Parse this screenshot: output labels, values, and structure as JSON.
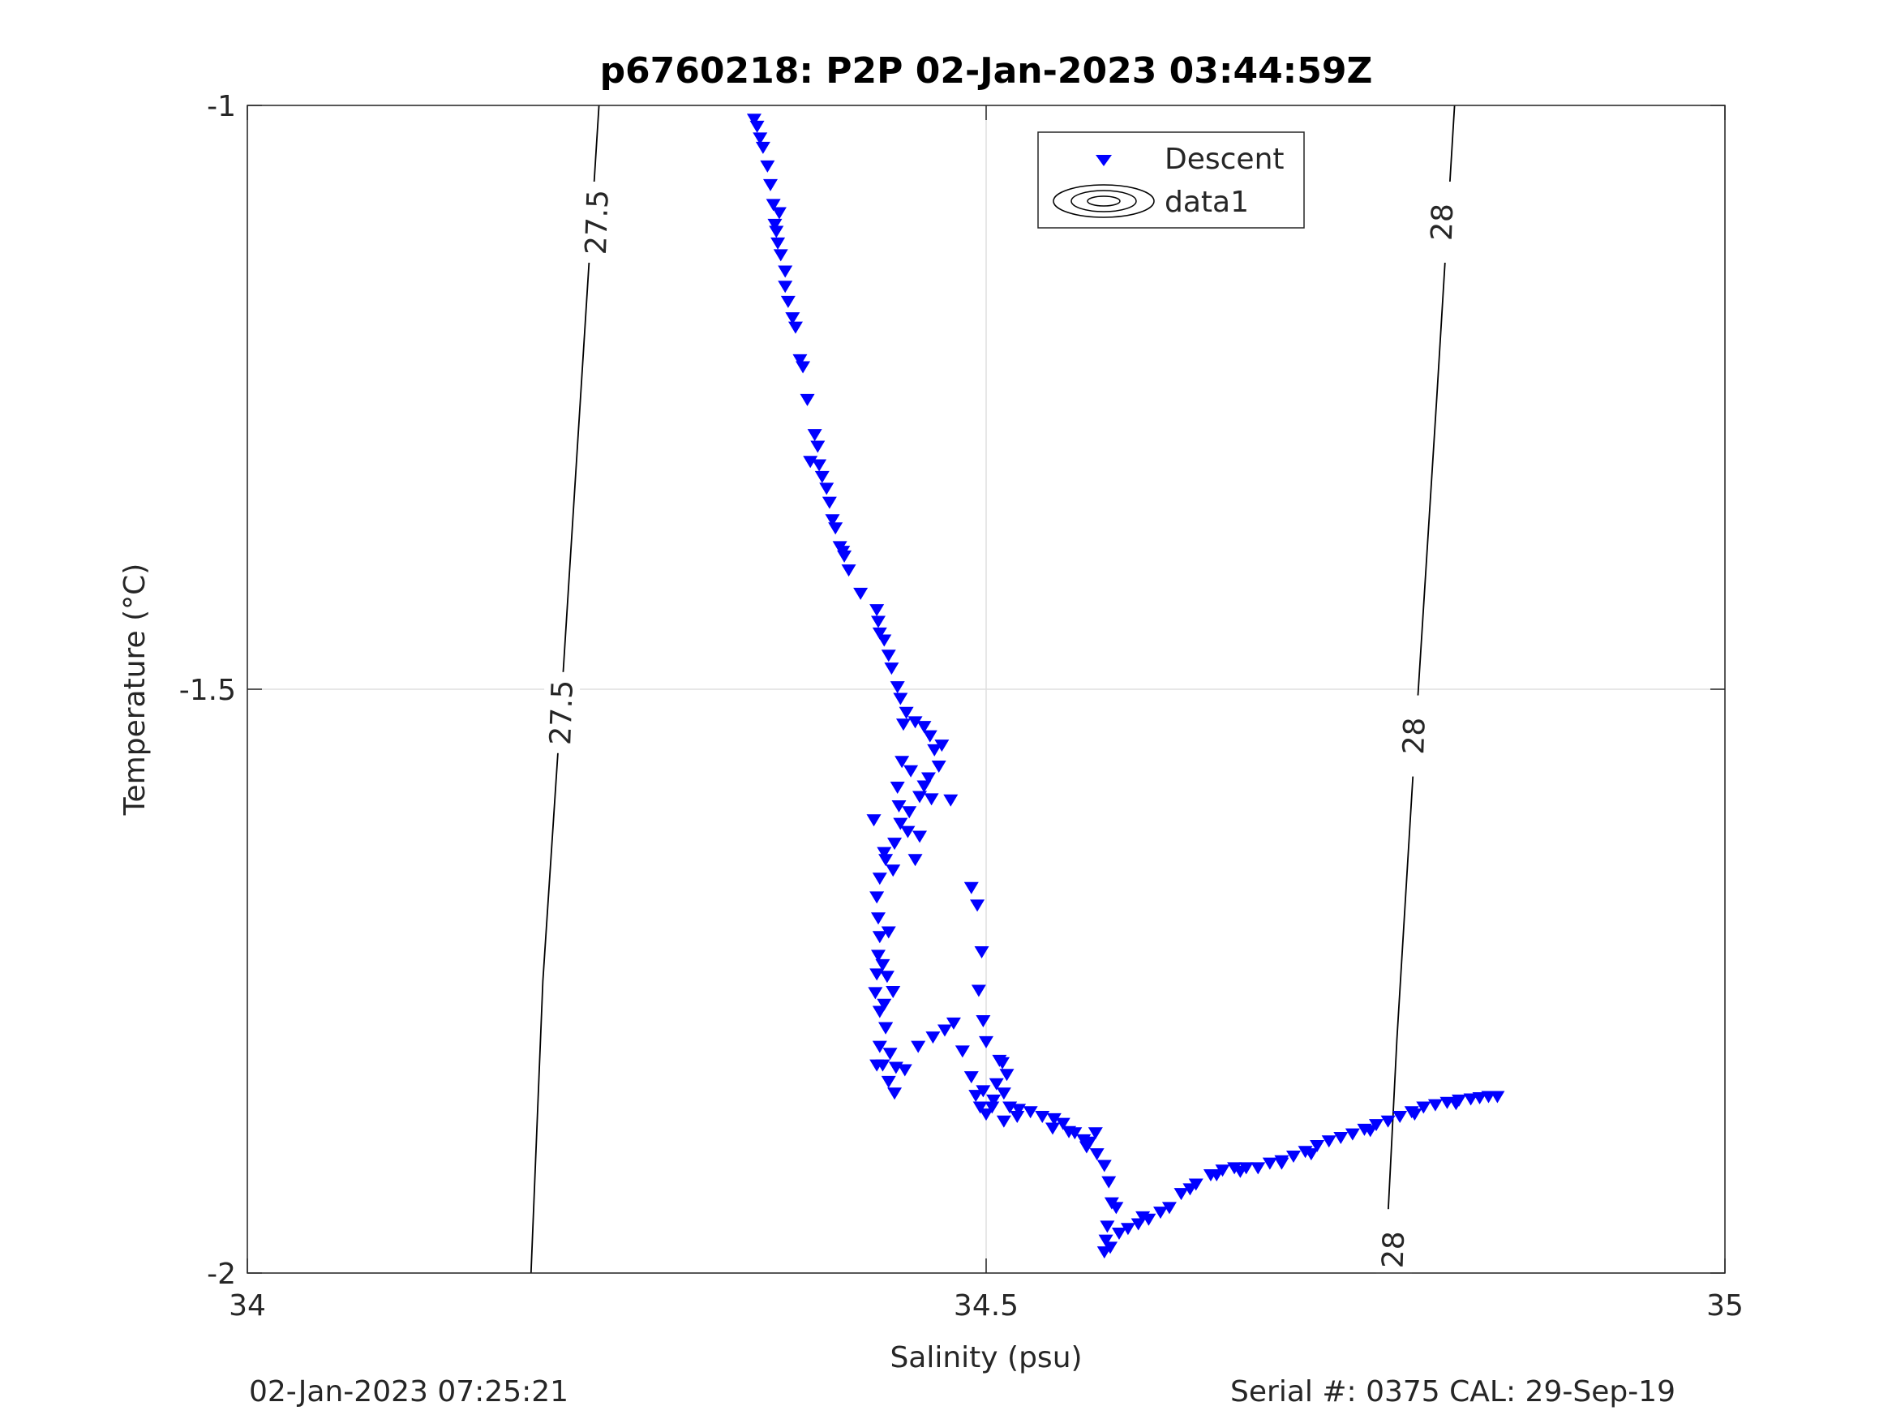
{
  "chart_data": {
    "type": "scatter",
    "title": "p6760218: P2P 02-Jan-2023 03:44:59Z",
    "xlabel": "Salinity (psu)",
    "ylabel": "Temperature (°C)",
    "xlim": [
      34,
      35
    ],
    "ylim": [
      -2,
      -1
    ],
    "xticks": [
      34,
      34.5,
      35
    ],
    "xtick_labels": [
      "34",
      "34.5",
      "35"
    ],
    "yticks": [
      -2,
      -1.5,
      -1
    ],
    "ytick_labels": [
      "-2",
      "-1.5",
      "-1"
    ],
    "grid": true,
    "legend": {
      "placement": "top-center",
      "entries": [
        "Descent",
        "data1"
      ]
    },
    "colors": {
      "descent": "#0000ff",
      "contour": "#000000",
      "grid": "#dfdfdf"
    },
    "series": [
      {
        "name": "Descent",
        "marker": "triangle-down",
        "color": "#0000ff",
        "points": [
          [
            34.343,
            -1.012
          ],
          [
            34.345,
            -1.018
          ],
          [
            34.347,
            -1.028
          ],
          [
            34.349,
            -1.036
          ],
          [
            34.352,
            -1.052
          ],
          [
            34.354,
            -1.068
          ],
          [
            34.356,
            -1.085
          ],
          [
            34.357,
            -1.102
          ],
          [
            34.358,
            -1.108
          ],
          [
            34.359,
            -1.118
          ],
          [
            34.361,
            -1.128
          ],
          [
            34.364,
            -1.142
          ],
          [
            34.366,
            -1.168
          ],
          [
            34.369,
            -1.182
          ],
          [
            34.371,
            -1.19
          ],
          [
            34.374,
            -1.218
          ],
          [
            34.376,
            -1.224
          ],
          [
            34.379,
            -1.252
          ],
          [
            34.384,
            -1.282
          ],
          [
            34.386,
            -1.292
          ],
          [
            34.387,
            -1.308
          ],
          [
            34.389,
            -1.318
          ],
          [
            34.392,
            -1.328
          ],
          [
            34.394,
            -1.34
          ],
          [
            34.396,
            -1.355
          ],
          [
            34.398,
            -1.362
          ],
          [
            34.401,
            -1.378
          ],
          [
            34.403,
            -1.382
          ],
          [
            34.407,
            -1.398
          ],
          [
            34.415,
            -1.418
          ],
          [
            34.426,
            -1.432
          ],
          [
            34.427,
            -1.442
          ],
          [
            34.428,
            -1.452
          ],
          [
            34.431,
            -1.458
          ],
          [
            34.434,
            -1.471
          ],
          [
            34.436,
            -1.482
          ],
          [
            34.44,
            -1.498
          ],
          [
            34.442,
            -1.508
          ],
          [
            34.446,
            -1.52
          ],
          [
            34.452,
            -1.528
          ],
          [
            34.458,
            -1.532
          ],
          [
            34.462,
            -1.54
          ],
          [
            34.465,
            -1.552
          ],
          [
            34.468,
            -1.566
          ],
          [
            34.461,
            -1.576
          ],
          [
            34.455,
            -1.592
          ],
          [
            34.448,
            -1.605
          ],
          [
            34.442,
            -1.615
          ],
          [
            34.438,
            -1.632
          ],
          [
            34.432,
            -1.646
          ],
          [
            34.428,
            -1.662
          ],
          [
            34.426,
            -1.678
          ],
          [
            34.427,
            -1.696
          ],
          [
            34.428,
            -1.712
          ],
          [
            34.427,
            -1.728
          ],
          [
            34.426,
            -1.744
          ],
          [
            34.425,
            -1.76
          ],
          [
            34.428,
            -1.776
          ],
          [
            34.432,
            -1.79
          ],
          [
            34.428,
            -1.806
          ],
          [
            34.43,
            -1.822
          ],
          [
            34.434,
            -1.836
          ],
          [
            34.438,
            -1.846
          ],
          [
            34.445,
            -1.826
          ],
          [
            34.454,
            -1.806
          ],
          [
            34.464,
            -1.798
          ],
          [
            34.472,
            -1.792
          ],
          [
            34.478,
            -1.786
          ],
          [
            34.484,
            -1.81
          ],
          [
            34.49,
            -1.832
          ],
          [
            34.493,
            -1.848
          ],
          [
            34.496,
            -1.858
          ],
          [
            34.5,
            -1.864
          ],
          [
            34.505,
            -1.852
          ],
          [
            34.512,
            -1.846
          ],
          [
            34.516,
            -1.858
          ],
          [
            34.522,
            -1.86
          ],
          [
            34.53,
            -1.862
          ],
          [
            34.538,
            -1.866
          ],
          [
            34.546,
            -1.868
          ],
          [
            34.552,
            -1.872
          ],
          [
            34.56,
            -1.88
          ],
          [
            34.566,
            -1.886
          ],
          [
            34.57,
            -1.888
          ],
          [
            34.575,
            -1.898
          ],
          [
            34.58,
            -1.908
          ],
          [
            34.583,
            -1.922
          ],
          [
            34.585,
            -1.94
          ],
          [
            34.582,
            -1.96
          ],
          [
            34.581,
            -1.972
          ],
          [
            34.58,
            -1.982
          ],
          [
            34.584,
            -1.978
          ],
          [
            34.59,
            -1.966
          ],
          [
            34.596,
            -1.962
          ],
          [
            34.603,
            -1.958
          ],
          [
            34.61,
            -1.954
          ],
          [
            34.618,
            -1.948
          ],
          [
            34.624,
            -1.944
          ],
          [
            34.632,
            -1.932
          ],
          [
            34.642,
            -1.924
          ],
          [
            34.652,
            -1.916
          ],
          [
            34.66,
            -1.912
          ],
          [
            34.668,
            -1.91
          ],
          [
            34.676,
            -1.91
          ],
          [
            34.684,
            -1.91
          ],
          [
            34.692,
            -1.906
          ],
          [
            34.7,
            -1.904
          ],
          [
            34.708,
            -1.9
          ],
          [
            34.716,
            -1.896
          ],
          [
            34.724,
            -1.891
          ],
          [
            34.732,
            -1.887
          ],
          [
            34.74,
            -1.884
          ],
          [
            34.748,
            -1.881
          ],
          [
            34.756,
            -1.877
          ],
          [
            34.764,
            -1.873
          ],
          [
            34.772,
            -1.87
          ],
          [
            34.78,
            -1.866
          ],
          [
            34.788,
            -1.862
          ],
          [
            34.796,
            -1.858
          ],
          [
            34.804,
            -1.856
          ],
          [
            34.812,
            -1.854
          ],
          [
            34.82,
            -1.852
          ],
          [
            34.828,
            -1.851
          ],
          [
            34.834,
            -1.85
          ],
          [
            34.84,
            -1.849
          ],
          [
            34.846,
            -1.849
          ],
          [
            34.36,
            -1.092
          ],
          [
            34.364,
            -1.155
          ],
          [
            34.381,
            -1.305
          ],
          [
            34.404,
            -1.386
          ],
          [
            34.424,
            -1.612
          ],
          [
            34.431,
            -1.64
          ],
          [
            34.437,
            -1.655
          ],
          [
            34.44,
            -1.584
          ],
          [
            34.441,
            -1.6
          ],
          [
            34.443,
            -1.562
          ],
          [
            34.444,
            -1.53
          ],
          [
            34.447,
            -1.622
          ],
          [
            34.449,
            -1.57
          ],
          [
            34.452,
            -1.646
          ],
          [
            34.455,
            -1.626
          ],
          [
            34.458,
            -1.583
          ],
          [
            34.463,
            -1.594
          ],
          [
            34.47,
            -1.548
          ],
          [
            34.476,
            -1.595
          ],
          [
            34.49,
            -1.67
          ],
          [
            34.494,
            -1.685
          ],
          [
            34.497,
            -1.725
          ],
          [
            34.495,
            -1.758
          ],
          [
            34.498,
            -1.784
          ],
          [
            34.5,
            -1.802
          ],
          [
            34.507,
            -1.838
          ],
          [
            34.511,
            -1.82
          ],
          [
            34.514,
            -1.83
          ],
          [
            34.434,
            -1.708
          ],
          [
            34.43,
            -1.736
          ],
          [
            34.431,
            -1.77
          ],
          [
            34.432,
            -1.79
          ],
          [
            34.435,
            -1.812
          ],
          [
            34.439,
            -1.824
          ],
          [
            34.426,
            -1.822
          ],
          [
            34.437,
            -1.759
          ],
          [
            34.433,
            -1.746
          ],
          [
            34.498,
            -1.844
          ],
          [
            34.504,
            -1.858
          ],
          [
            34.509,
            -1.818
          ],
          [
            34.512,
            -1.87
          ],
          [
            34.521,
            -1.866
          ],
          [
            34.545,
            -1.876
          ],
          [
            34.556,
            -1.879
          ],
          [
            34.568,
            -1.892
          ],
          [
            34.574,
            -1.88
          ],
          [
            34.588,
            -1.944
          ],
          [
            34.606,
            -1.952
          ],
          [
            34.638,
            -1.928
          ],
          [
            34.656,
            -1.916
          ],
          [
            34.672,
            -1.913
          ],
          [
            34.7,
            -1.906
          ],
          [
            34.72,
            -1.898
          ],
          [
            34.76,
            -1.878
          ],
          [
            34.79,
            -1.864
          ],
          [
            34.818,
            -1.855
          ]
        ]
      }
    ],
    "contours": [
      {
        "name": "data1",
        "style": "black line, density isopycnals",
        "lines": [
          {
            "level": "27.5",
            "path": [
              [
                34.192,
                -2
              ],
              [
                34.2,
                -1.75
              ],
              [
                34.213,
                -1.5
              ],
              [
                34.223,
                -1.3
              ],
              [
                34.238,
                -1.0
              ]
            ],
            "labels": [
              [
                34.213,
                -1.52
              ],
              [
                34.237,
                -1.1
              ]
            ]
          },
          {
            "level": "28",
            "path": [
              [
                34.77,
                -2
              ],
              [
                34.778,
                -1.8
              ],
              [
                34.79,
                -1.55
              ],
              [
                34.805,
                -1.25
              ],
              [
                34.817,
                -1.0
              ]
            ],
            "labels": [
              [
                34.776,
                -1.98
              ],
              [
                34.79,
                -1.54
              ],
              [
                34.809,
                -1.1
              ]
            ]
          }
        ]
      }
    ]
  },
  "footer": {
    "left": "02-Jan-2023 07:25:21",
    "right": "Serial #: 0375  CAL: 29-Sep-19"
  }
}
